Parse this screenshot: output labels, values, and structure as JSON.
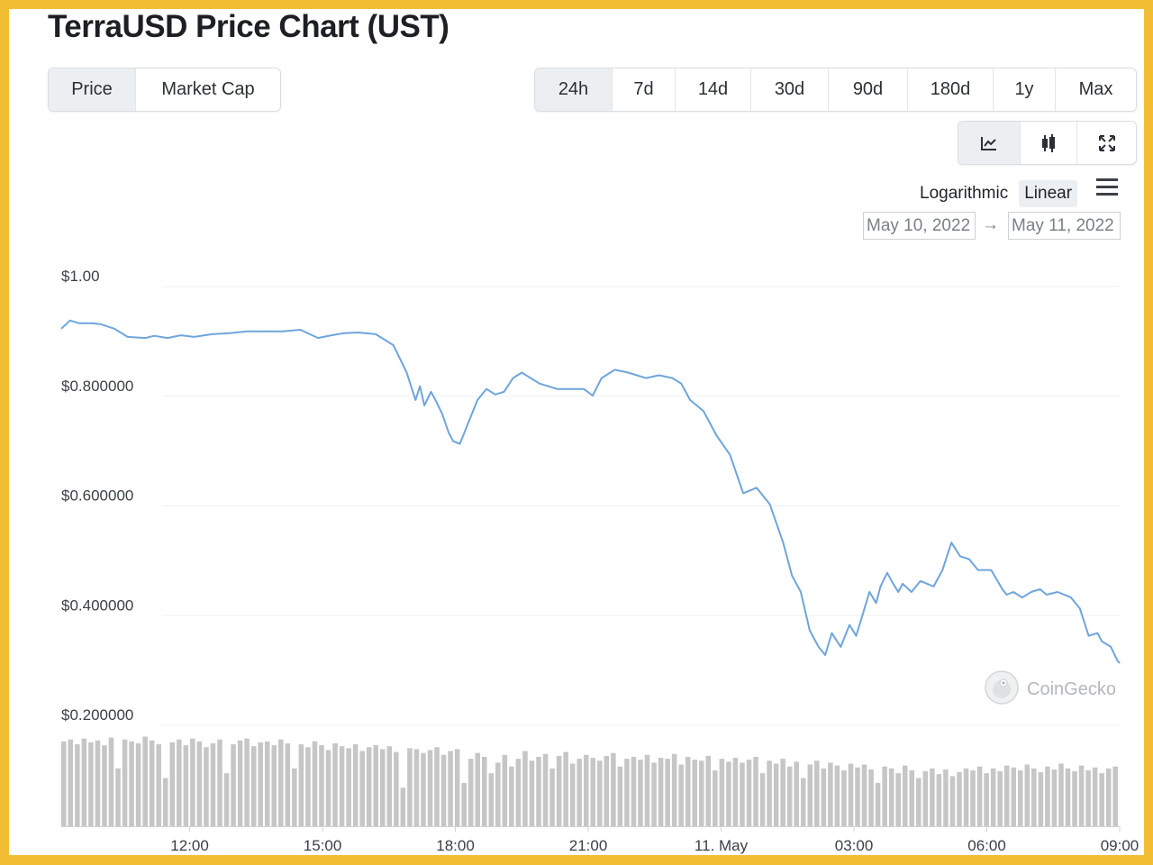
{
  "page": {
    "title": "TerraUSD Price Chart (UST)"
  },
  "metric_tabs": [
    {
      "label": "Price",
      "active": true
    },
    {
      "label": "Market Cap",
      "active": false
    }
  ],
  "range_tabs": [
    {
      "label": "24h",
      "active": true
    },
    {
      "label": "7d",
      "active": false
    },
    {
      "label": "14d",
      "active": false
    },
    {
      "label": "30d",
      "active": false
    },
    {
      "label": "90d",
      "active": false
    },
    {
      "label": "180d",
      "active": false
    },
    {
      "label": "1y",
      "active": false
    },
    {
      "label": "Max",
      "active": false
    }
  ],
  "chart_tools": [
    {
      "icon": "line-chart-icon",
      "active": true
    },
    {
      "icon": "candlestick-icon",
      "active": false
    },
    {
      "icon": "fullscreen-icon",
      "active": false
    }
  ],
  "scale_options": {
    "logarithmic": "Logarithmic",
    "linear": "Linear",
    "active": "linear"
  },
  "date_range": {
    "from": "May 10, 2022",
    "to": "May 11, 2022",
    "arrow": "→"
  },
  "watermark": "CoinGecko",
  "colors": {
    "frame": "#f3bd33",
    "line": "#6fa5dc",
    "volume": "#c6c6c6",
    "active_button": "#eceff2"
  },
  "chart_data": {
    "type": "line",
    "title": "TerraUSD Price Chart (UST)",
    "y_ticks": [
      "$1.00",
      "$0.800000",
      "$0.600000",
      "$0.400000",
      "$0.200000"
    ],
    "y_tick_values": [
      1.0,
      0.8,
      0.6,
      0.4,
      0.2
    ],
    "ylim": [
      0.2,
      1.0
    ],
    "x_ticks": [
      "12:00",
      "15:00",
      "18:00",
      "21:00",
      "11. May",
      "03:00",
      "06:00",
      "09:00"
    ],
    "x_tick_hours": [
      12,
      15,
      18,
      21,
      24,
      27,
      30,
      33
    ],
    "xlim_hours": [
      9.1,
      33.0
    ],
    "x_unit": "hours from May 10, 2022 00:00",
    "grid": true,
    "series": [
      {
        "x": [
          9.1,
          9.3,
          9.5,
          9.8,
          10.0,
          10.3,
          10.6,
          11.0,
          11.2,
          11.5,
          11.8,
          12.1,
          12.5,
          12.9,
          13.3,
          13.7,
          14.1,
          14.5,
          14.9,
          15.2,
          15.5,
          15.8,
          16.2,
          16.6,
          16.9,
          17.1,
          17.2,
          17.3,
          17.45,
          17.55,
          17.7,
          17.85,
          17.95,
          18.1,
          18.3,
          18.5,
          18.7,
          18.9,
          19.1,
          19.3,
          19.5,
          19.7,
          19.9,
          20.1,
          20.3,
          20.5,
          20.7,
          20.9,
          21.1,
          21.3,
          21.6,
          21.9,
          22.1,
          22.3,
          22.6,
          22.9,
          23.1,
          23.3,
          23.6,
          23.9,
          24.2,
          24.5,
          24.8,
          25.1,
          25.4,
          25.6,
          25.8,
          26.0,
          26.2,
          26.35,
          26.5,
          26.7,
          26.9,
          27.05,
          27.2,
          27.35,
          27.5,
          27.6,
          27.75,
          27.85,
          28.0,
          28.1,
          28.3,
          28.5,
          28.8,
          29.0,
          29.2,
          29.4,
          29.6,
          29.8,
          30.1,
          30.35,
          30.45,
          30.6,
          30.8,
          31.0,
          31.2,
          31.35,
          31.6,
          31.9,
          32.1,
          32.3,
          32.5,
          32.6,
          32.8,
          32.95,
          33.0
        ],
        "y": [
          0.91,
          0.925,
          0.92,
          0.92,
          0.918,
          0.91,
          0.895,
          0.893,
          0.897,
          0.893,
          0.898,
          0.895,
          0.9,
          0.902,
          0.905,
          0.905,
          0.905,
          0.908,
          0.893,
          0.898,
          0.902,
          0.903,
          0.9,
          0.88,
          0.83,
          0.78,
          0.805,
          0.77,
          0.795,
          0.78,
          0.755,
          0.72,
          0.705,
          0.7,
          0.74,
          0.78,
          0.8,
          0.79,
          0.795,
          0.82,
          0.83,
          0.82,
          0.81,
          0.805,
          0.8,
          0.8,
          0.8,
          0.8,
          0.788,
          0.82,
          0.835,
          0.83,
          0.825,
          0.82,
          0.825,
          0.82,
          0.81,
          0.78,
          0.76,
          0.715,
          0.68,
          0.61,
          0.62,
          0.59,
          0.52,
          0.46,
          0.43,
          0.36,
          0.33,
          0.315,
          0.355,
          0.33,
          0.37,
          0.35,
          0.39,
          0.43,
          0.41,
          0.44,
          0.465,
          0.45,
          0.43,
          0.445,
          0.43,
          0.45,
          0.44,
          0.47,
          0.52,
          0.495,
          0.49,
          0.47,
          0.47,
          0.435,
          0.425,
          0.43,
          0.42,
          0.43,
          0.435,
          0.425,
          0.43,
          0.42,
          0.4,
          0.35,
          0.355,
          0.34,
          0.33,
          0.305,
          0.3
        ]
      }
    ],
    "volume_note": "relative trading volume bars, one per interval",
    "volume": [
      0.88,
      0.9,
      0.85,
      0.91,
      0.87,
      0.89,
      0.84,
      0.92,
      0.6,
      0.9,
      0.88,
      0.86,
      0.93,
      0.89,
      0.85,
      0.5,
      0.87,
      0.9,
      0.84,
      0.91,
      0.88,
      0.82,
      0.86,
      0.9,
      0.55,
      0.85,
      0.89,
      0.91,
      0.83,
      0.87,
      0.88,
      0.84,
      0.9,
      0.86,
      0.6,
      0.85,
      0.82,
      0.88,
      0.84,
      0.79,
      0.86,
      0.83,
      0.81,
      0.85,
      0.78,
      0.82,
      0.84,
      0.8,
      0.83,
      0.77,
      0.4,
      0.81,
      0.8,
      0.76,
      0.79,
      0.82,
      0.74,
      0.78,
      0.8,
      0.45,
      0.7,
      0.76,
      0.72,
      0.55,
      0.66,
      0.74,
      0.62,
      0.7,
      0.78,
      0.68,
      0.72,
      0.75,
      0.6,
      0.73,
      0.77,
      0.65,
      0.7,
      0.74,
      0.71,
      0.68,
      0.73,
      0.76,
      0.62,
      0.7,
      0.72,
      0.69,
      0.74,
      0.66,
      0.71,
      0.7,
      0.75,
      0.64,
      0.72,
      0.69,
      0.68,
      0.73,
      0.58,
      0.7,
      0.67,
      0.71,
      0.66,
      0.69,
      0.72,
      0.55,
      0.68,
      0.65,
      0.7,
      0.62,
      0.67,
      0.5,
      0.64,
      0.68,
      0.6,
      0.66,
      0.63,
      0.58,
      0.65,
      0.61,
      0.64,
      0.59,
      0.45,
      0.62,
      0.6,
      0.55,
      0.63,
      0.58,
      0.5,
      0.57,
      0.6,
      0.54,
      0.59,
      0.52,
      0.56,
      0.6,
      0.58,
      0.62,
      0.55,
      0.6,
      0.57,
      0.63,
      0.61,
      0.58,
      0.64,
      0.6,
      0.56,
      0.62,
      0.59,
      0.65,
      0.6,
      0.57,
      0.63,
      0.58,
      0.61,
      0.55,
      0.6,
      0.62
    ]
  }
}
